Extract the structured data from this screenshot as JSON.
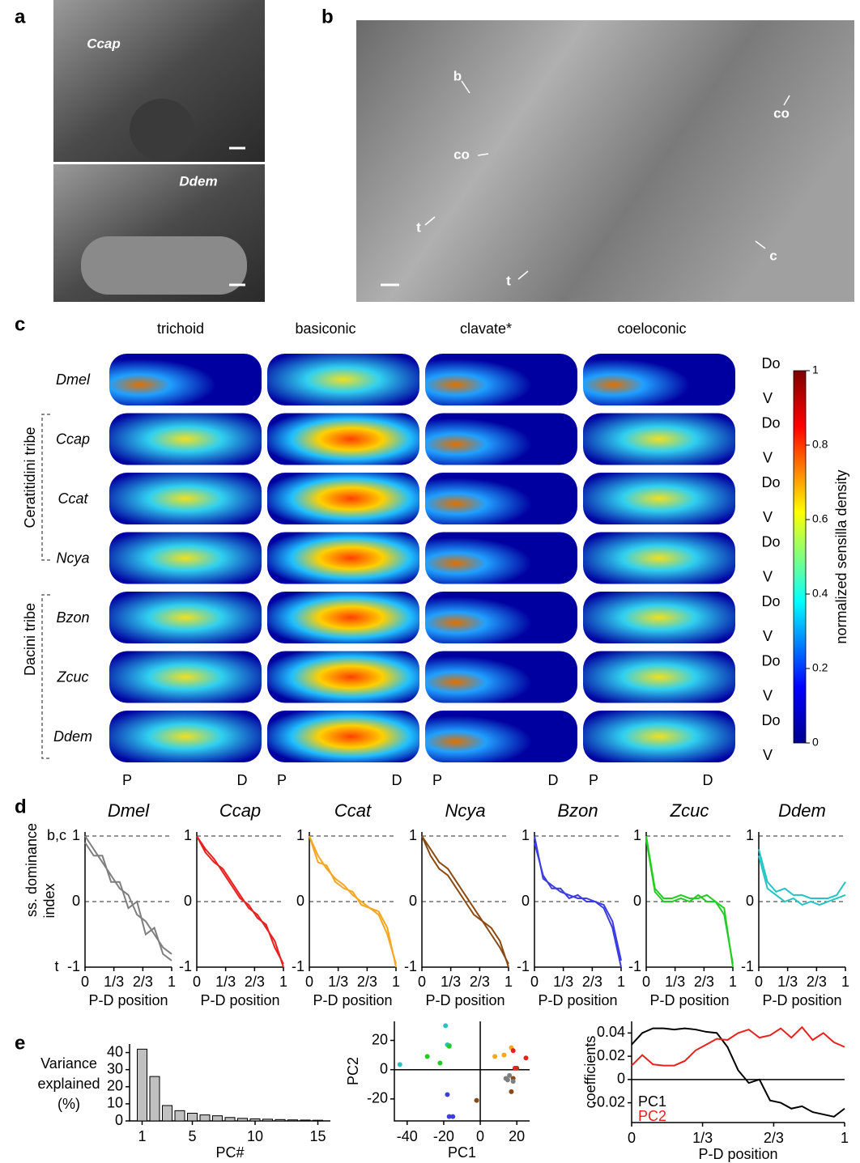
{
  "panel_labels": [
    "a",
    "b",
    "c",
    "d",
    "e"
  ],
  "panel_a": {
    "top_label": "Ccap",
    "bottom_label": "Ddem"
  },
  "panel_b": {
    "labels": [
      "b",
      "co",
      "co",
      "t",
      "t",
      "c"
    ]
  },
  "panel_c": {
    "columns": [
      "trichoid",
      "basiconic",
      "clavate*",
      "coeloconic"
    ],
    "rows": [
      "Dmel",
      "Ccap",
      "Ccat",
      "Ncya",
      "Bzon",
      "Zcuc",
      "Ddem"
    ],
    "dorsal_label": "Do",
    "ventral_label": "V",
    "proximal_label": "P",
    "distal_label": "D",
    "tribes": [
      "Ceratitidini tribe",
      "Dacini tribe"
    ],
    "colorbar": {
      "label": "normalized sensilla density",
      "lim": [
        0,
        1
      ],
      "ticks": [
        0,
        0.2,
        0.4,
        0.6,
        0.8,
        1
      ]
    }
  },
  "panel_d": {
    "type": "line",
    "ylabel": [
      "ss. dominance",
      "index"
    ],
    "top_annotation": "b,c",
    "bottom_annotation": "t",
    "xlabel": "P-D position",
    "xlim": [
      0,
      1
    ],
    "ylim": [
      -1,
      1
    ],
    "xticks": [
      0,
      {
        "value": 0.333,
        "label": "1/3"
      },
      {
        "value": 0.667,
        "label": "2/3"
      },
      1
    ],
    "yticks": [
      1,
      0,
      -1
    ],
    "x": [
      0,
      0.1,
      0.2,
      0.3,
      0.4,
      0.5,
      0.6,
      0.7,
      0.8,
      0.9,
      1
    ],
    "species": [
      {
        "title": "Dmel",
        "color": "#7f7f7f",
        "traces": [
          [
            1,
            0.8,
            0.6,
            0.4,
            0.2,
            0.1,
            -0.2,
            -0.3,
            -0.5,
            -0.7,
            -0.8
          ],
          [
            0.9,
            0.7,
            0.7,
            0.3,
            0.3,
            -0.1,
            0,
            -0.5,
            -0.4,
            -0.8,
            -0.9
          ]
        ]
      },
      {
        "title": "Ccap",
        "color": "#e8211f",
        "traces": [
          [
            1,
            0.75,
            0.6,
            0.5,
            0.3,
            0.1,
            -0.1,
            -0.2,
            -0.4,
            -0.6,
            -1
          ],
          [
            1,
            0.8,
            0.65,
            0.45,
            0.25,
            0.05,
            -0.05,
            -0.25,
            -0.35,
            -0.7,
            -0.95
          ]
        ]
      },
      {
        "title": "Ccat",
        "color": "#f5a623",
        "traces": [
          [
            1,
            0.7,
            0.5,
            0.35,
            0.25,
            0.1,
            0,
            -0.1,
            -0.15,
            -0.4,
            -1
          ],
          [
            1,
            0.6,
            0.55,
            0.3,
            0.2,
            0.15,
            -0.05,
            -0.1,
            -0.2,
            -0.5,
            -0.95
          ]
        ]
      },
      {
        "title": "Ncya",
        "color": "#8b4a13",
        "traces": [
          [
            1,
            0.8,
            0.6,
            0.5,
            0.3,
            0.1,
            -0.1,
            -0.3,
            -0.4,
            -0.6,
            -1
          ],
          [
            1,
            0.7,
            0.5,
            0.4,
            0.2,
            0,
            -0.2,
            -0.3,
            -0.5,
            -0.7,
            -0.95
          ]
        ]
      },
      {
        "title": "Bzon",
        "color": "#3d3de0",
        "traces": [
          [
            1,
            0.35,
            0.25,
            0.15,
            0.1,
            0.05,
            0.05,
            0,
            -0.05,
            -0.3,
            -0.9
          ],
          [
            0.9,
            0.4,
            0.2,
            0.2,
            0.05,
            0.1,
            0,
            0,
            -0.1,
            -0.4,
            -1
          ]
        ]
      },
      {
        "title": "Zcuc",
        "color": "#22cc22",
        "traces": [
          [
            1,
            0.2,
            0.05,
            0.05,
            0.1,
            0.05,
            0.05,
            0.1,
            0,
            -0.1,
            -1
          ],
          [
            0.95,
            0.15,
            0,
            0,
            0.05,
            0,
            0.1,
            0,
            0,
            -0.2,
            -0.95
          ]
        ]
      },
      {
        "title": "Ddem",
        "color": "#22c4c4",
        "traces": [
          [
            0.8,
            0.3,
            0.15,
            0.2,
            0.1,
            0.1,
            0.05,
            0.05,
            0.05,
            0.1,
            0.3
          ],
          [
            0.7,
            0.2,
            0.1,
            0,
            0.05,
            -0.05,
            0,
            -0.05,
            0,
            0.05,
            0.1
          ]
        ]
      }
    ]
  },
  "panel_e": [
    {
      "type": "bar",
      "ylabel": [
        "Variance",
        "explained",
        "(%)"
      ],
      "xlabel": "PC#",
      "color": "#c0c0c0",
      "x": [
        1,
        2,
        3,
        4,
        5,
        6,
        7,
        8,
        9,
        10,
        11,
        12,
        13,
        14,
        15
      ],
      "values": [
        42,
        26,
        9,
        6,
        4.5,
        3.5,
        3,
        2,
        1.5,
        1.2,
        1,
        0.8,
        0.6,
        0.5,
        0.4
      ],
      "xlim": [
        0,
        16
      ],
      "ylim": [
        0,
        45
      ],
      "xticks": [
        1,
        5,
        10,
        15
      ],
      "yticks": [
        0,
        10,
        20,
        30,
        40
      ]
    },
    {
      "type": "scatter",
      "xlabel": "PC1",
      "ylabel": "PC2",
      "xlim": [
        -47,
        27
      ],
      "ylim": [
        -35,
        33
      ],
      "xticks": [
        -40,
        -20,
        0,
        20
      ],
      "yticks": [
        -20,
        0,
        20
      ],
      "series": [
        {
          "color": "#22c4c4",
          "x": [
            -19,
            -18,
            -17,
            -44
          ],
          "y": [
            30,
            17,
            16.5,
            3.5
          ]
        },
        {
          "color": "#22cc22",
          "x": [
            -29,
            -22,
            -17
          ],
          "y": [
            9,
            4.5,
            16
          ]
        },
        {
          "color": "#3d3de0",
          "x": [
            -18,
            -17,
            -15
          ],
          "y": [
            -17,
            -32,
            -32
          ]
        },
        {
          "color": "#8b4a13",
          "x": [
            -2,
            17,
            18,
            20
          ],
          "y": [
            -21,
            -15,
            -6,
            1
          ]
        },
        {
          "color": "#f5a623",
          "x": [
            8,
            13,
            17
          ],
          "y": [
            9,
            10,
            15
          ]
        },
        {
          "color": "#e8211f",
          "x": [
            18,
            25,
            19
          ],
          "y": [
            13,
            8,
            1
          ]
        },
        {
          "color": "#7f7f7f",
          "x": [
            15,
            16,
            18,
            14
          ],
          "y": [
            -7,
            -4,
            -8,
            -6
          ]
        }
      ]
    },
    {
      "type": "line",
      "xlabel": "P-D position",
      "ylabel": "coefficients",
      "xlim": [
        0,
        1
      ],
      "ylim": [
        -0.037,
        0.05
      ],
      "xticks": [
        0,
        {
          "value": 0.333,
          "label": "1/3"
        },
        {
          "value": 0.667,
          "label": "2/3"
        },
        1
      ],
      "yticks": [
        -0.02,
        0,
        0.02,
        0.04
      ],
      "x": [
        0,
        0.05,
        0.1,
        0.15,
        0.2,
        0.25,
        0.3,
        0.35,
        0.4,
        0.45,
        0.5,
        0.55,
        0.6,
        0.65,
        0.7,
        0.75,
        0.8,
        0.85,
        0.9,
        0.95,
        1
      ],
      "series": [
        {
          "name": "PC1",
          "color": "#000000",
          "values": [
            0.03,
            0.04,
            0.044,
            0.044,
            0.043,
            0.044,
            0.043,
            0.041,
            0.04,
            0.028,
            0.008,
            -0.003,
            0,
            -0.018,
            -0.02,
            -0.025,
            -0.023,
            -0.028,
            -0.03,
            -0.032,
            -0.025
          ]
        },
        {
          "name": "PC2",
          "color": "#e8211f",
          "values": [
            0.012,
            0.021,
            0.013,
            0.012,
            0.012,
            0.016,
            0.025,
            0.03,
            0.035,
            0.034,
            0.04,
            0.043,
            0.036,
            0.038,
            0.044,
            0.036,
            0.045,
            0.034,
            0.04,
            0.032,
            0.028
          ]
        }
      ]
    }
  ]
}
